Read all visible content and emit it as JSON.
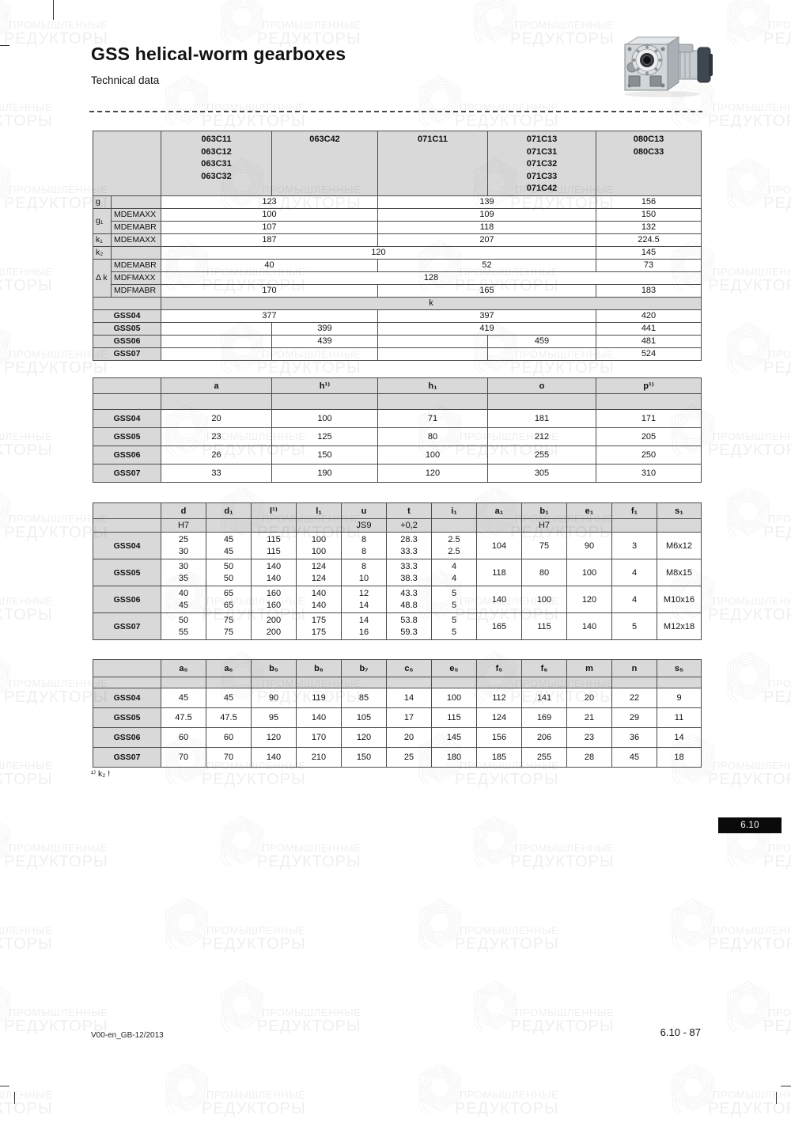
{
  "page": {
    "title": "GSS helical-worm gearboxes",
    "subtitle": "Technical data",
    "footnote": "¹⁾ k₂ !",
    "section_tab": "6.10",
    "footer_left": "V00-en_GB-12/2013",
    "footer_right": "6.10 - 87"
  },
  "watermark": {
    "line1": "ПРОМЫШЛЕННЫЕ",
    "line2": "РЕДУКТОРЫ"
  },
  "colors": {
    "shaded_cell": "#d9d9d9",
    "table_border": "#4c4c4c",
    "tab_bg": "#0a0a0a",
    "tab_text": "#ffffff"
  },
  "table1": {
    "corner": "",
    "models": [
      "063C11\n063C12\n063C31\n063C32",
      "063C42",
      "071C11",
      "071C13\n071C31\n071C32\n071C33\n071C42",
      "080C13\n080C33"
    ],
    "g": {
      "sym": "g",
      "sub": "",
      "v": [
        "123",
        "139",
        "156"
      ]
    },
    "g1a": {
      "sym": "g₁",
      "sub": "MDEMAXX",
      "v": [
        "100",
        "109",
        "150"
      ]
    },
    "g1b": {
      "sub": "MDEMABR",
      "v": [
        "107",
        "118",
        "132"
      ]
    },
    "k1": {
      "sym": "k₁",
      "sub": "MDEMAXX",
      "v": [
        "187",
        "207",
        "224.5"
      ]
    },
    "k2": {
      "sym": "k₂",
      "sub": "",
      "v14": "120",
      "v5": "145"
    },
    "dka": {
      "sym": "Δ k",
      "sub": "MDEMABR",
      "v": [
        "40",
        "52",
        "73"
      ]
    },
    "dkb": {
      "sub": "MDFMAXX",
      "vall": "128"
    },
    "dkc": {
      "sub": "MDFMABR",
      "v": [
        "170",
        "165",
        "183"
      ]
    },
    "section_k": "k",
    "gss04": {
      "label": "GSS04",
      "v": [
        "377",
        "397",
        "420"
      ]
    },
    "gss05": {
      "label": "GSS05",
      "c2": "399",
      "c34": "419",
      "c5": "441"
    },
    "gss06": {
      "label": "GSS06",
      "c2": "439",
      "c4": "459",
      "c5": "481"
    },
    "gss07": {
      "label": "GSS07",
      "c5": "524"
    }
  },
  "table2": {
    "headers": [
      "a",
      "h¹⁾",
      "h₁",
      "o",
      "p¹⁾"
    ],
    "rows": [
      {
        "label": "GSS04",
        "values": [
          "20",
          "100",
          "71",
          "181",
          "171"
        ]
      },
      {
        "label": "GSS05",
        "values": [
          "23",
          "125",
          "80",
          "212",
          "205"
        ]
      },
      {
        "label": "GSS06",
        "values": [
          "26",
          "150",
          "100",
          "255",
          "250"
        ]
      },
      {
        "label": "GSS07",
        "values": [
          "33",
          "190",
          "120",
          "305",
          "310"
        ]
      }
    ]
  },
  "table3": {
    "headers": [
      "d",
      "d₁",
      "l¹⁾",
      "l₁",
      "u",
      "t",
      "i₁",
      "a₁",
      "b₁",
      "e₁",
      "f₁",
      "s₁"
    ],
    "subheaders": [
      "H7",
      "",
      "",
      "",
      "JS9",
      "+0,2",
      "",
      "",
      "H7",
      "",
      "",
      ""
    ],
    "rows": [
      {
        "label": "GSS04",
        "values": [
          "25\n30",
          "45\n45",
          "115\n115",
          "100\n100",
          "8\n8",
          "28.3\n33.3",
          "2.5\n2.5",
          "104",
          "75",
          "90",
          "3",
          "M6x12"
        ]
      },
      {
        "label": "GSS05",
        "values": [
          "30\n35",
          "50\n50",
          "140\n140",
          "124\n124",
          "8\n10",
          "33.3\n38.3",
          "4\n4",
          "118",
          "80",
          "100",
          "4",
          "M8x15"
        ]
      },
      {
        "label": "GSS06",
        "values": [
          "40\n45",
          "65\n65",
          "160\n160",
          "140\n140",
          "12\n14",
          "43.3\n48.8",
          "5\n5",
          "140",
          "100",
          "120",
          "4",
          "M10x16"
        ]
      },
      {
        "label": "GSS07",
        "values": [
          "50\n55",
          "75\n75",
          "200\n200",
          "175\n175",
          "14\n16",
          "53.8\n59.3",
          "5\n5",
          "165",
          "115",
          "140",
          "5",
          "M12x18"
        ]
      }
    ]
  },
  "table4": {
    "headers": [
      "a₅",
      "a₆",
      "b₅",
      "b₆",
      "b₇",
      "c₅",
      "e₅",
      "f₅",
      "f₆",
      "m",
      "n",
      "s₅"
    ],
    "rows": [
      {
        "label": "GSS04",
        "values": [
          "45",
          "45",
          "90",
          "119",
          "85",
          "14",
          "100",
          "112",
          "141",
          "20",
          "22",
          "9"
        ]
      },
      {
        "label": "GSS05",
        "values": [
          "47.5",
          "47.5",
          "95",
          "140",
          "105",
          "17",
          "115",
          "124",
          "169",
          "21",
          "29",
          "11"
        ]
      },
      {
        "label": "GSS06",
        "values": [
          "60",
          "60",
          "120",
          "170",
          "120",
          "20",
          "145",
          "156",
          "206",
          "23",
          "36",
          "14"
        ]
      },
      {
        "label": "GSS07",
        "values": [
          "70",
          "70",
          "140",
          "210",
          "150",
          "25",
          "180",
          "185",
          "255",
          "28",
          "45",
          "18"
        ]
      }
    ]
  }
}
